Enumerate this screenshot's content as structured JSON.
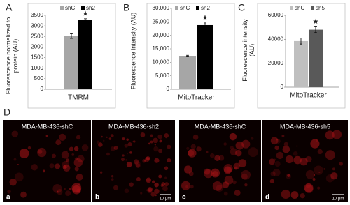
{
  "chart_data": [
    {
      "type": "bar",
      "panel": "A",
      "ylabel": "Fluorescence normalized to protein (AU)",
      "categories": [
        "TMRM"
      ],
      "series": [
        {
          "name": "shC",
          "color": "#a6a6a6",
          "values": [
            2520
          ],
          "errors": [
            110
          ]
        },
        {
          "name": "sh2",
          "color": "#000000",
          "values": [
            3270
          ],
          "errors": [
            70
          ]
        }
      ],
      "annotation": "★",
      "ylim": [
        0,
        3500
      ],
      "yticks": [
        0,
        500,
        1000,
        1500,
        2000,
        2500,
        3000,
        3500
      ],
      "grid": false
    },
    {
      "type": "bar",
      "panel": "B",
      "ylabel": "Fluorescence intensity (AU)",
      "categories": [
        "MitoTracker"
      ],
      "series": [
        {
          "name": "shC",
          "color": "#a6a6a6",
          "values": [
            12300
          ],
          "errors": [
            300
          ]
        },
        {
          "name": "sh2",
          "color": "#000000",
          "values": [
            23800
          ],
          "errors": [
            800
          ]
        }
      ],
      "annotation": "★",
      "ylim": [
        0,
        30000
      ],
      "yticks": [
        0,
        {
          "value": 5000,
          "label": "5,000"
        },
        {
          "value": 10000,
          "label": "10,000"
        },
        {
          "value": 15000,
          "label": "15,000"
        },
        {
          "value": 20000,
          "label": "20,000"
        },
        {
          "value": 25000,
          "label": "25,000"
        },
        {
          "value": 30000,
          "label": "30,000"
        }
      ],
      "grid": false
    },
    {
      "type": "bar",
      "panel": "C",
      "ylabel": "Fluorescence intensity (AU)",
      "categories": [
        "MitoTracker"
      ],
      "series": [
        {
          "name": "shC",
          "color": "#bfbfbf",
          "values": [
            38500
          ],
          "errors": [
            2500
          ]
        },
        {
          "name": "sh5",
          "color": "#595959",
          "values": [
            48000
          ],
          "errors": [
            2500
          ]
        }
      ],
      "annotation": "★",
      "ylim": [
        0,
        60000
      ],
      "yticks": [
        0,
        20000,
        40000,
        60000
      ],
      "grid": false
    }
  ],
  "panel_d": {
    "letter": "D",
    "images": [
      {
        "label": "MDA-MB-436-shC",
        "letter": "a"
      },
      {
        "label": "MDA-MB-436-sh2",
        "letter": "b",
        "scale_bar": "10 μm"
      },
      {
        "label": "MDA-MB-436-shC",
        "letter": "c"
      },
      {
        "label": "MDA-MB-436-sh5",
        "letter": "d",
        "scale_bar": "10 μm"
      }
    ]
  }
}
